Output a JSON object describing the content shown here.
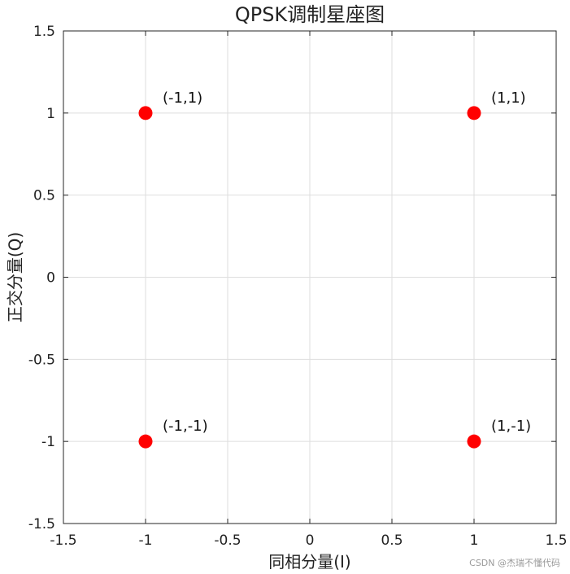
{
  "chart_data": {
    "type": "scatter",
    "title": "QPSK调制星座图",
    "xlabel": "同相分量(I)",
    "ylabel": "正交分量(Q)",
    "xlim": [
      -1.5,
      1.5
    ],
    "ylim": [
      -1.5,
      1.5
    ],
    "xticks": [
      -1.5,
      -1,
      -0.5,
      0,
      0.5,
      1,
      1.5
    ],
    "yticks": [
      -1.5,
      -1,
      -0.5,
      0,
      0.5,
      1,
      1.5
    ],
    "xtick_labels": [
      "-1.5",
      "-1",
      "-0.5",
      "0",
      "0.5",
      "1",
      "1.5"
    ],
    "ytick_labels": [
      "-1.5",
      "-1",
      "-0.5",
      "0",
      "0.5",
      "1",
      "1.5"
    ],
    "grid": true,
    "marker_color": "#ff0000",
    "points": [
      {
        "x": -1,
        "y": 1,
        "label": "(-1,1)"
      },
      {
        "x": 1,
        "y": 1,
        "label": "(1,1)"
      },
      {
        "x": -1,
        "y": -1,
        "label": "(-1,-1)"
      },
      {
        "x": 1,
        "y": -1,
        "label": "(1,-1)"
      }
    ]
  },
  "watermark": "CSDN @杰瑞不懂代码"
}
